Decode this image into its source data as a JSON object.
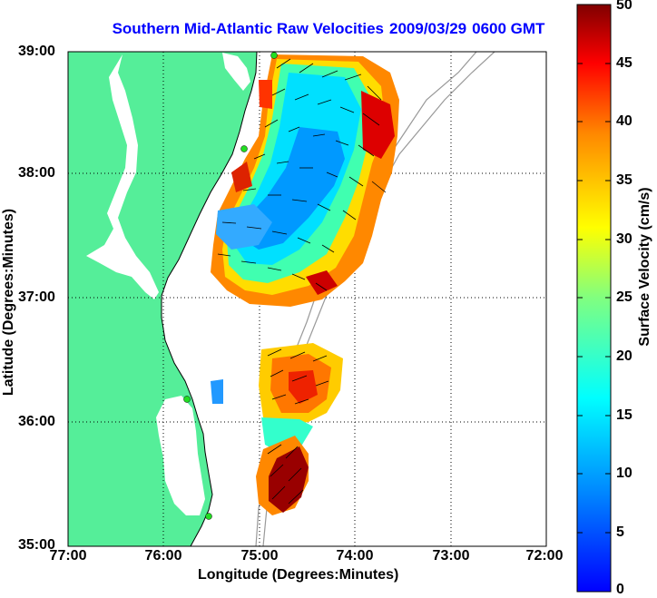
{
  "title": {
    "region": "Southern Mid-Atlantic Raw Velocities",
    "date": "2009/03/29",
    "time": "0600 GMT"
  },
  "x_axis": {
    "label": "Longitude (Degrees:Minutes)",
    "ticks": [
      "77:00",
      "76:00",
      "75:00",
      "74:00",
      "73:00",
      "72:00"
    ]
  },
  "y_axis": {
    "label": "Latitude (Degrees:Minutes)",
    "ticks": [
      "39:00",
      "38:00",
      "37:00",
      "36:00",
      "35:00"
    ]
  },
  "colorbar": {
    "label": "Surface Velocity (cm/s)",
    "ticks": [
      "50",
      "45",
      "40",
      "35",
      "30",
      "25",
      "20",
      "15",
      "10",
      "5",
      "0"
    ]
  },
  "colors": {
    "land": "#55ee99",
    "title": "#0000ff",
    "station": "#22dd22"
  }
}
